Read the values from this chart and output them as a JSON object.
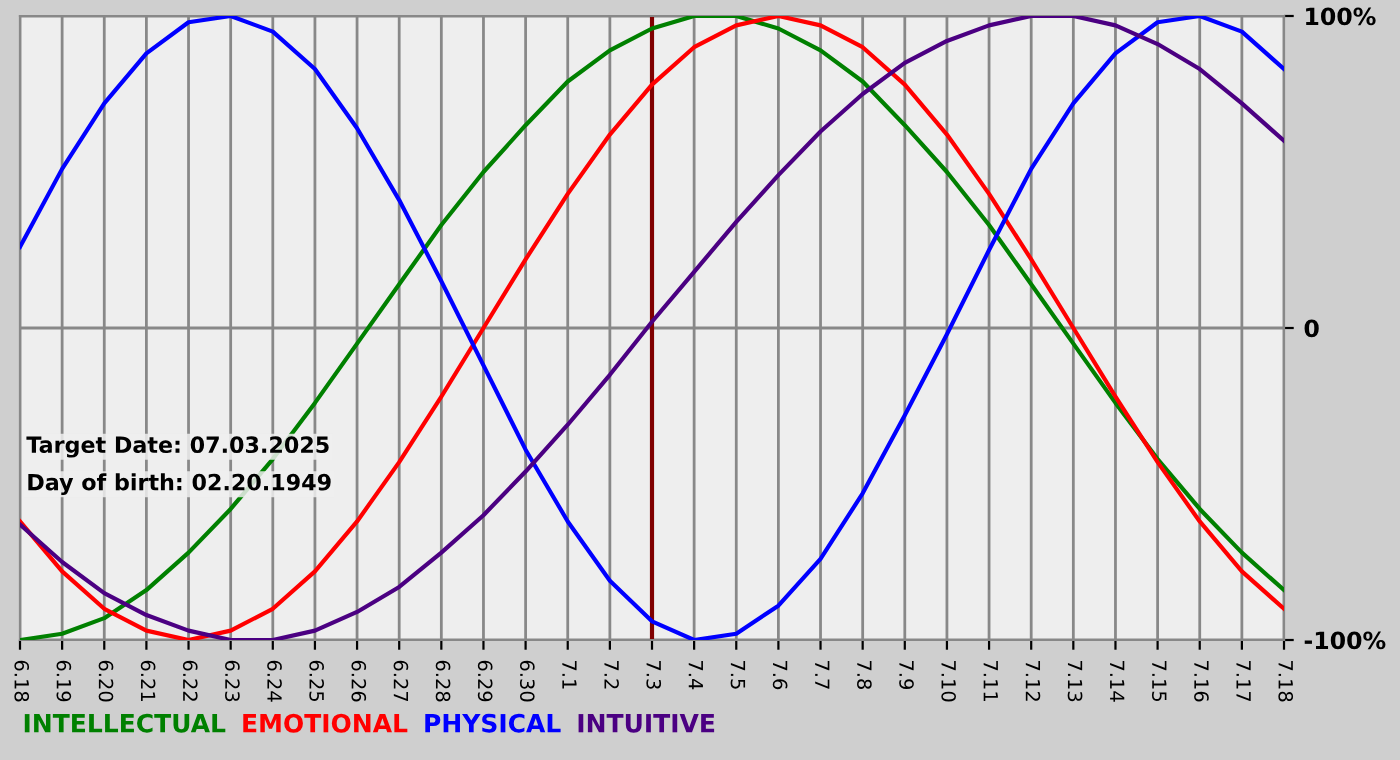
{
  "chart_data": {
    "type": "line",
    "categories": [
      "6.18",
      "6.19",
      "6.20",
      "6.21",
      "6.22",
      "6.23",
      "6.24",
      "6.25",
      "6.26",
      "6.27",
      "6.28",
      "6.29",
      "6.30",
      "7.1",
      "7.2",
      "7.3",
      "7.4",
      "7.5",
      "7.6",
      "7.7",
      "7.8",
      "7.9",
      "7.10",
      "7.11",
      "7.12",
      "7.13",
      "7.14",
      "7.15",
      "7.16",
      "7.17",
      "7.18"
    ],
    "series": [
      {
        "name": "INTELLECTUAL",
        "color": "#008000",
        "values": [
          -100,
          -98,
          -93,
          -84,
          -72,
          -58,
          -42,
          -24,
          -5,
          14,
          33,
          50,
          65,
          79,
          89,
          96,
          100,
          100,
          96,
          89,
          79,
          65,
          50,
          33,
          14,
          -5,
          -24,
          -42,
          -58,
          -72,
          -84
        ]
      },
      {
        "name": "EMOTIONAL",
        "color": "#ff0000",
        "values": [
          -62,
          -78,
          -90,
          -97,
          -100,
          -97,
          -90,
          -78,
          -62,
          -43,
          -22,
          0,
          22,
          43,
          62,
          78,
          90,
          97,
          100,
          97,
          90,
          78,
          62,
          43,
          22,
          0,
          -22,
          -43,
          -62,
          -78,
          -90
        ]
      },
      {
        "name": "PHYSICAL",
        "color": "#0000ff",
        "values": [
          26,
          51,
          72,
          88,
          98,
          100,
          95,
          83,
          64,
          41,
          15,
          -12,
          -39,
          -62,
          -81,
          -94,
          -100,
          -98,
          -89,
          -74,
          -53,
          -28,
          -2,
          25,
          51,
          72,
          88,
          98,
          100,
          95,
          83
        ]
      },
      {
        "name": "INTUITIVE",
        "color": "#4b0082",
        "values": [
          -63,
          -75,
          -85,
          -92,
          -97,
          -100,
          -100,
          -97,
          -91,
          -83,
          -72,
          -60,
          -46,
          -31,
          -15,
          2,
          18,
          34,
          49,
          63,
          75,
          85,
          92,
          97,
          100,
          100,
          97,
          91,
          83,
          72,
          60
        ]
      }
    ],
    "ylim": [
      -100,
      100
    ],
    "yticks": [
      {
        "value": -100,
        "label": "-100%"
      },
      {
        "value": 0,
        "label": "0"
      },
      {
        "value": 100,
        "label": "100%"
      }
    ],
    "grid": true,
    "legend": "bottom",
    "marker": "none",
    "line_style": "solid",
    "ref_lines": [
      {
        "axis": "x",
        "value": "7.3",
        "color": "#800000"
      }
    ],
    "annotations": [
      "Target Date: 07.03.2025",
      "Day of birth: 02.20.1949"
    ]
  }
}
